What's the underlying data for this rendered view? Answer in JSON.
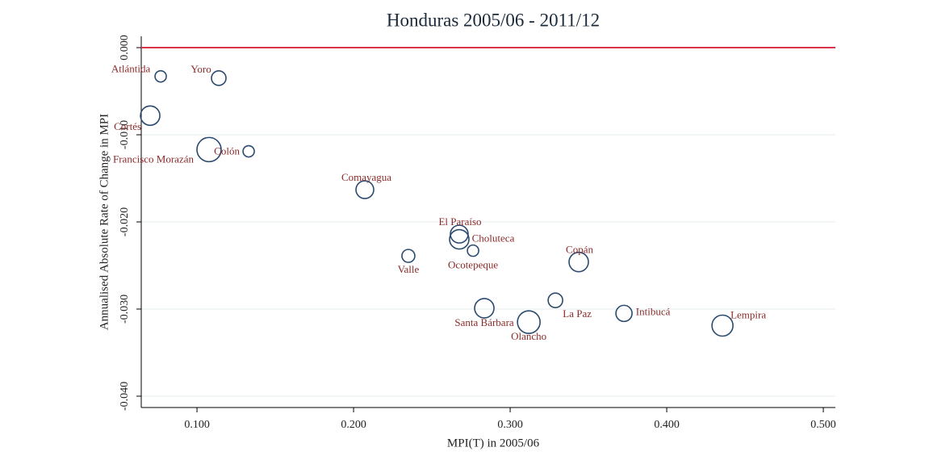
{
  "chart_data": {
    "type": "bubble",
    "title": "Honduras 2005/06 - 2011/12",
    "x_label": "MPI(T) in 2005/06",
    "y_label": "Annualised Absolute Rate of Change in MPI",
    "labels": [
      "Atlántida",
      "Yoro",
      "Cortés",
      "Francisco Morazán",
      "Colón",
      "Comayagua",
      "El Paraíso",
      "Choluteca",
      "Ocotepeque",
      "Valle",
      "Copán",
      "La Paz",
      "Santa Bárbara",
      "Olancho",
      "Intibucá",
      "Lempira"
    ],
    "x": [
      0.0768,
      0.1139,
      0.0701,
      0.1077,
      0.133,
      0.2072,
      0.2675,
      0.2675,
      0.2763,
      0.235,
      0.3438,
      0.3289,
      0.2835,
      0.3119,
      0.3727,
      0.4356
    ],
    "values": [
      -0.0033,
      -0.0035,
      -0.0078,
      -0.0117,
      -0.0119,
      -0.0163,
      -0.0214,
      -0.022,
      -0.0233,
      -0.0239,
      -0.0246,
      -0.029,
      -0.0299,
      -0.0315,
      -0.0305,
      -0.0319
    ],
    "sizes": [
      7,
      9,
      12,
      15,
      7,
      11,
      11,
      12,
      7,
      8,
      12,
      9,
      12,
      14,
      10,
      13
    ],
    "marker_color": "#2b4a6f",
    "label_color": "#8b2a2a",
    "hline": {
      "value": 0,
      "color": "#d9344b"
    },
    "xlim": [
      0.0644,
      0.5077
    ],
    "ylim": [
      -0.0413,
      0.0013
    ],
    "xticks": [
      {
        "value": 0.1,
        "label": "0.100"
      },
      {
        "value": 0.2,
        "label": "0.200"
      },
      {
        "value": 0.3,
        "label": "0.300"
      },
      {
        "value": 0.4,
        "label": "0.400"
      },
      {
        "value": 0.5,
        "label": "0.500"
      }
    ],
    "yticks": [
      {
        "value": 0,
        "label": "0.000"
      },
      {
        "value": -0.01,
        "label": "-0.010"
      },
      {
        "value": -0.02,
        "label": "-0.020"
      },
      {
        "value": -0.03,
        "label": "-0.030"
      },
      {
        "value": -0.04,
        "label": "-0.040"
      }
    ],
    "grid": true
  }
}
